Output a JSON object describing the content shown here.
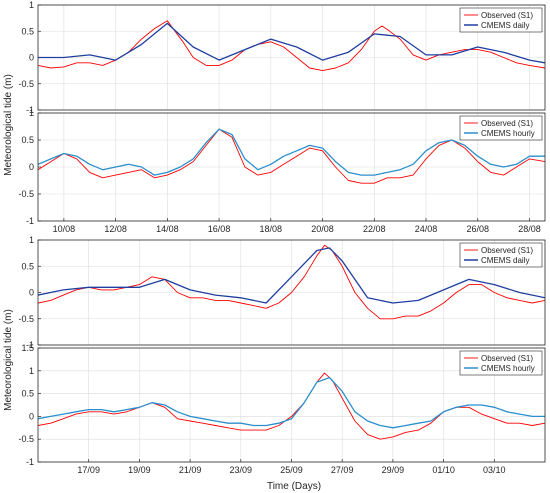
{
  "figure": {
    "ylabel_top": "Meteorological tide (m)",
    "ylabel_bottom": "Meteorological tide (m)",
    "xlabel": "Time (Days)"
  },
  "colors": {
    "observed": "#ff0000",
    "cmems_daily": "#1f3fa0",
    "cmems_hourly": "#2a8fcc",
    "grid": "#dcdcdc",
    "axis": "#262626"
  },
  "chart_data": [
    {
      "type": "line",
      "ylim": [
        -1,
        1
      ],
      "yticks": [
        -1,
        -0.5,
        0,
        0.5,
        1
      ],
      "xlim": [
        9.0,
        28.6
      ],
      "grid": true,
      "legend_placement": "top-right",
      "series": [
        {
          "name": "Observed (S1)",
          "x": [
            9.0,
            9.5,
            10.0,
            10.5,
            11.0,
            11.5,
            12.0,
            12.5,
            13.0,
            13.5,
            14.0,
            14.3,
            14.6,
            15.0,
            15.5,
            16.0,
            16.5,
            17.0,
            17.5,
            18.0,
            18.5,
            19.0,
            19.5,
            20.0,
            20.5,
            21.0,
            21.5,
            22.0,
            22.3,
            22.6,
            23.0,
            23.5,
            24.0,
            24.5,
            25.0,
            25.5,
            26.0,
            26.5,
            27.0,
            27.5,
            28.0,
            28.6
          ],
          "y": [
            -0.15,
            -0.2,
            -0.18,
            -0.1,
            -0.1,
            -0.15,
            -0.05,
            0.1,
            0.35,
            0.55,
            0.7,
            0.5,
            0.3,
            0.0,
            -0.15,
            -0.15,
            -0.05,
            0.15,
            0.25,
            0.3,
            0.2,
            0.0,
            -0.2,
            -0.25,
            -0.2,
            -0.1,
            0.15,
            0.5,
            0.6,
            0.5,
            0.35,
            0.05,
            -0.05,
            0.05,
            0.1,
            0.15,
            0.15,
            0.1,
            0.0,
            -0.1,
            -0.15,
            -0.2
          ]
        },
        {
          "name": "CMEMS daily",
          "x": [
            9.0,
            10.0,
            11.0,
            12.0,
            13.0,
            14.0,
            15.0,
            16.0,
            17.0,
            18.0,
            19.0,
            20.0,
            21.0,
            22.0,
            23.0,
            24.0,
            25.0,
            26.0,
            27.0,
            28.0,
            28.6
          ],
          "y": [
            0.0,
            0.0,
            0.05,
            -0.05,
            0.25,
            0.65,
            0.2,
            -0.05,
            0.15,
            0.35,
            0.2,
            -0.05,
            0.1,
            0.45,
            0.4,
            0.05,
            0.05,
            0.2,
            0.1,
            -0.05,
            -0.1
          ]
        }
      ]
    },
    {
      "type": "line",
      "ylim": [
        -1,
        1
      ],
      "yticks": [
        -1,
        -0.5,
        0,
        0.5,
        1
      ],
      "xlim": [
        9.0,
        28.6
      ],
      "xticks": [
        "10/08",
        "12/08",
        "14/08",
        "16/08",
        "18/08",
        "20/08",
        "22/08",
        "24/08",
        "26/08",
        "28/08"
      ],
      "xtick_values": [
        10,
        12,
        14,
        16,
        18,
        20,
        22,
        24,
        26,
        28
      ],
      "grid": true,
      "legend_placement": "top-right",
      "series": [
        {
          "name": "Observed (S1)",
          "x": [
            9.0,
            9.5,
            10.0,
            10.5,
            11.0,
            11.5,
            12.0,
            12.5,
            13.0,
            13.5,
            14.0,
            14.5,
            15.0,
            15.5,
            16.0,
            16.5,
            17.0,
            17.5,
            18.0,
            18.5,
            19.0,
            19.5,
            20.0,
            20.5,
            21.0,
            21.5,
            22.0,
            22.5,
            23.0,
            23.5,
            24.0,
            24.5,
            25.0,
            25.5,
            26.0,
            26.5,
            27.0,
            27.5,
            28.0,
            28.6
          ],
          "y": [
            -0.05,
            0.1,
            0.25,
            0.15,
            -0.1,
            -0.2,
            -0.15,
            -0.1,
            -0.05,
            -0.2,
            -0.15,
            -0.05,
            0.1,
            0.4,
            0.7,
            0.55,
            0.0,
            -0.15,
            -0.1,
            0.05,
            0.2,
            0.35,
            0.3,
            0.0,
            -0.25,
            -0.3,
            -0.3,
            -0.2,
            -0.2,
            -0.15,
            0.15,
            0.4,
            0.5,
            0.35,
            0.1,
            -0.1,
            -0.15,
            0.0,
            0.15,
            0.1
          ]
        },
        {
          "name": "CMEMS hourly",
          "x": [
            9.0,
            9.5,
            10.0,
            10.5,
            11.0,
            11.5,
            12.0,
            12.5,
            13.0,
            13.5,
            14.0,
            14.5,
            15.0,
            15.5,
            16.0,
            16.5,
            17.0,
            17.5,
            18.0,
            18.5,
            19.0,
            19.5,
            20.0,
            20.5,
            21.0,
            21.5,
            22.0,
            22.5,
            23.0,
            23.5,
            24.0,
            24.5,
            25.0,
            25.5,
            26.0,
            26.5,
            27.0,
            27.5,
            28.0,
            28.6
          ],
          "y": [
            0.05,
            0.15,
            0.25,
            0.2,
            0.05,
            -0.05,
            0.0,
            0.05,
            0.0,
            -0.15,
            -0.1,
            0.0,
            0.15,
            0.45,
            0.7,
            0.6,
            0.15,
            -0.05,
            0.05,
            0.2,
            0.3,
            0.4,
            0.35,
            0.1,
            -0.1,
            -0.15,
            -0.15,
            -0.1,
            -0.05,
            0.05,
            0.3,
            0.45,
            0.5,
            0.4,
            0.2,
            0.05,
            0.0,
            0.05,
            0.2,
            0.2
          ]
        }
      ]
    },
    {
      "type": "line",
      "ylim": [
        -1,
        1
      ],
      "yticks": [
        -1,
        -0.5,
        0,
        0.5,
        1
      ],
      "xlim": [
        15.0,
        35.0
      ],
      "grid": true,
      "legend_placement": "top-right",
      "series": [
        {
          "name": "Observed (S1)",
          "x": [
            15.0,
            15.5,
            16.0,
            16.5,
            17.0,
            17.5,
            18.0,
            18.5,
            19.0,
            19.5,
            20.0,
            20.5,
            21.0,
            21.5,
            22.0,
            22.5,
            23.0,
            23.5,
            24.0,
            24.5,
            25.0,
            25.5,
            26.0,
            26.3,
            26.6,
            27.0,
            27.5,
            28.0,
            28.5,
            29.0,
            29.5,
            30.0,
            30.5,
            31.0,
            31.5,
            32.0,
            32.5,
            33.0,
            33.5,
            34.0,
            34.5,
            35.0
          ],
          "y": [
            -0.2,
            -0.15,
            -0.05,
            0.05,
            0.1,
            0.05,
            0.05,
            0.1,
            0.15,
            0.3,
            0.25,
            0.0,
            -0.1,
            -0.1,
            -0.15,
            -0.15,
            -0.2,
            -0.25,
            -0.3,
            -0.2,
            0.0,
            0.3,
            0.7,
            0.9,
            0.8,
            0.5,
            0.0,
            -0.3,
            -0.5,
            -0.5,
            -0.45,
            -0.45,
            -0.35,
            -0.2,
            0.0,
            0.15,
            0.15,
            0.0,
            -0.1,
            -0.15,
            -0.2,
            -0.15
          ]
        },
        {
          "name": "CMEMS daily",
          "x": [
            15.0,
            16.0,
            17.0,
            18.0,
            19.0,
            20.0,
            21.0,
            22.0,
            23.0,
            24.0,
            25.0,
            26.0,
            26.5,
            27.0,
            28.0,
            29.0,
            30.0,
            31.0,
            32.0,
            33.0,
            34.0,
            35.0
          ],
          "y": [
            -0.05,
            0.05,
            0.1,
            0.1,
            0.1,
            0.25,
            0.05,
            -0.05,
            -0.1,
            -0.2,
            0.3,
            0.8,
            0.85,
            0.6,
            -0.1,
            -0.2,
            -0.15,
            0.05,
            0.25,
            0.15,
            0.0,
            -0.1
          ]
        }
      ]
    },
    {
      "type": "line",
      "ylim": [
        -1,
        1.5
      ],
      "yticks": [
        -1,
        -0.5,
        0,
        0.5,
        1,
        1.5
      ],
      "xlim": [
        15.0,
        35.0
      ],
      "xticks": [
        "17/09",
        "19/09",
        "21/09",
        "23/09",
        "25/09",
        "27/09",
        "29/09",
        "01/10",
        "03/10"
      ],
      "xtick_values": [
        17,
        19,
        21,
        23,
        25,
        27,
        29,
        31,
        33
      ],
      "grid": true,
      "legend_placement": "top-right",
      "series": [
        {
          "name": "Observed (S1)",
          "x": [
            15.0,
            15.5,
            16.0,
            16.5,
            17.0,
            17.5,
            18.0,
            18.5,
            19.0,
            19.5,
            20.0,
            20.5,
            21.0,
            21.5,
            22.0,
            22.5,
            23.0,
            23.5,
            24.0,
            24.5,
            25.0,
            25.5,
            26.0,
            26.3,
            26.6,
            27.0,
            27.5,
            28.0,
            28.5,
            29.0,
            29.5,
            30.0,
            30.5,
            31.0,
            31.5,
            32.0,
            32.5,
            33.0,
            33.5,
            34.0,
            34.5,
            35.0
          ],
          "y": [
            -0.2,
            -0.15,
            -0.05,
            0.05,
            0.1,
            0.1,
            0.05,
            0.1,
            0.2,
            0.3,
            0.2,
            -0.05,
            -0.1,
            -0.15,
            -0.2,
            -0.25,
            -0.3,
            -0.3,
            -0.3,
            -0.2,
            0.0,
            0.3,
            0.75,
            0.95,
            0.8,
            0.4,
            -0.1,
            -0.4,
            -0.5,
            -0.45,
            -0.35,
            -0.3,
            -0.15,
            0.1,
            0.2,
            0.2,
            0.05,
            -0.05,
            -0.15,
            -0.15,
            -0.2,
            -0.15
          ]
        },
        {
          "name": "CMEMS hourly",
          "x": [
            15.0,
            15.5,
            16.0,
            16.5,
            17.0,
            17.5,
            18.0,
            18.5,
            19.0,
            19.5,
            20.0,
            20.5,
            21.0,
            21.5,
            22.0,
            22.5,
            23.0,
            23.5,
            24.0,
            24.5,
            25.0,
            25.5,
            26.0,
            26.5,
            27.0,
            27.5,
            28.0,
            28.5,
            29.0,
            29.5,
            30.0,
            30.5,
            31.0,
            31.5,
            32.0,
            32.5,
            33.0,
            33.5,
            34.0,
            34.5,
            35.0
          ],
          "y": [
            -0.05,
            0.0,
            0.05,
            0.1,
            0.15,
            0.15,
            0.1,
            0.15,
            0.2,
            0.3,
            0.25,
            0.1,
            0.0,
            -0.05,
            -0.1,
            -0.15,
            -0.15,
            -0.2,
            -0.2,
            -0.15,
            -0.05,
            0.3,
            0.75,
            0.85,
            0.55,
            0.1,
            -0.1,
            -0.2,
            -0.25,
            -0.2,
            -0.15,
            -0.1,
            0.1,
            0.2,
            0.25,
            0.25,
            0.2,
            0.1,
            0.05,
            0.0,
            0.0
          ]
        }
      ]
    }
  ]
}
